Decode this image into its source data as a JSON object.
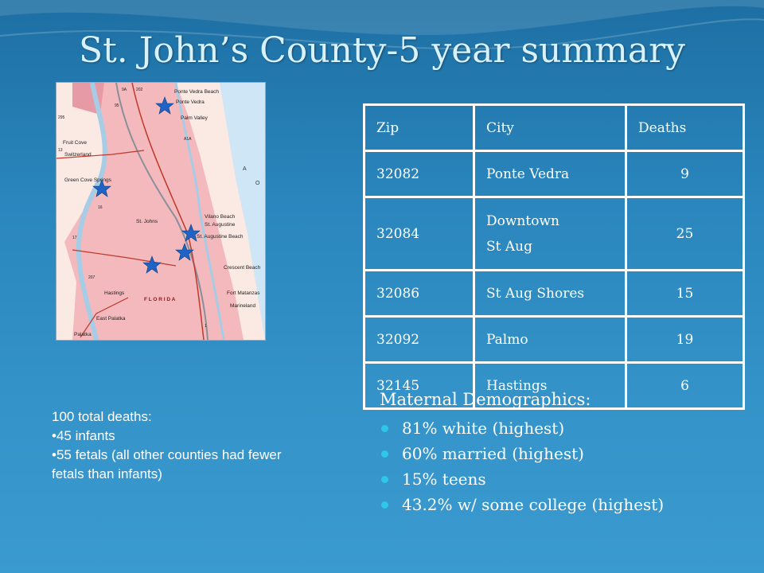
{
  "slide": {
    "title": "St. John’s County-5 year summary"
  },
  "map": {
    "icon": "florida-map",
    "labels": {
      "ponte_vedra_beach": "Ponte Vedra Beach",
      "ponte_vedra": "Ponte Vedra",
      "palm_valley": "Palm Valley",
      "fruit_cove": "Fruit Cove",
      "switzerland": "Switzerland",
      "green_cove_springs": "Green Cove Springs",
      "st_johns": "St. Johns",
      "vilano_beach": "Vilano Beach",
      "st_augustine": "St. Augustine",
      "st_augustine_beach": "St. Augustine Beach",
      "crescent_beach": "Crescent Beach",
      "hastings": "Hastings",
      "florida": "F L O R I D A",
      "fort_matanzas": "Fort Matanzas",
      "marineland": "Marineland",
      "east_palatka": "East Palatka",
      "palatka": "Palatka",
      "atlantic_a": "A",
      "atlantic_o": "O",
      "rt_9a": "9A",
      "rt_202": "202",
      "rt_95": "95",
      "rt_295": "295",
      "rt_a1a": "A1A",
      "rt_13": "13",
      "rt_16": "16",
      "rt_17": "17",
      "rt_1": "1",
      "rt_207": "207"
    }
  },
  "table": {
    "headers": [
      "Zip",
      "City",
      "Deaths"
    ],
    "rows": [
      {
        "zip": "32082",
        "city": "Ponte Vedra",
        "deaths": "9"
      },
      {
        "zip": "32084",
        "city": "Downtown",
        "city2": "St Aug",
        "deaths": "25"
      },
      {
        "zip": "32086",
        "city": "St Aug Shores",
        "deaths": "15"
      },
      {
        "zip": "32092",
        "city": "Palmo",
        "deaths": "19"
      },
      {
        "zip": "32145",
        "city": "Hastings",
        "deaths": "6"
      }
    ]
  },
  "demographics": {
    "heading": "Maternal Demographics:",
    "items": [
      "81% white (highest)",
      "60% married (highest)",
      "15% teens",
      "43.2% w/ some college (highest)"
    ],
    "bullet_color": "#2fc6e8"
  },
  "deaths_summary": {
    "line1": "100 total deaths:",
    "line2": "•45 infants",
    "line3": "•55 fetals (all other counties had fewer fetals than infants)"
  },
  "colors": {
    "title": "#d9f1fb",
    "star": "#1f63c4",
    "county_fill": "#f3b9bd",
    "water": "#cfe6f6"
  }
}
